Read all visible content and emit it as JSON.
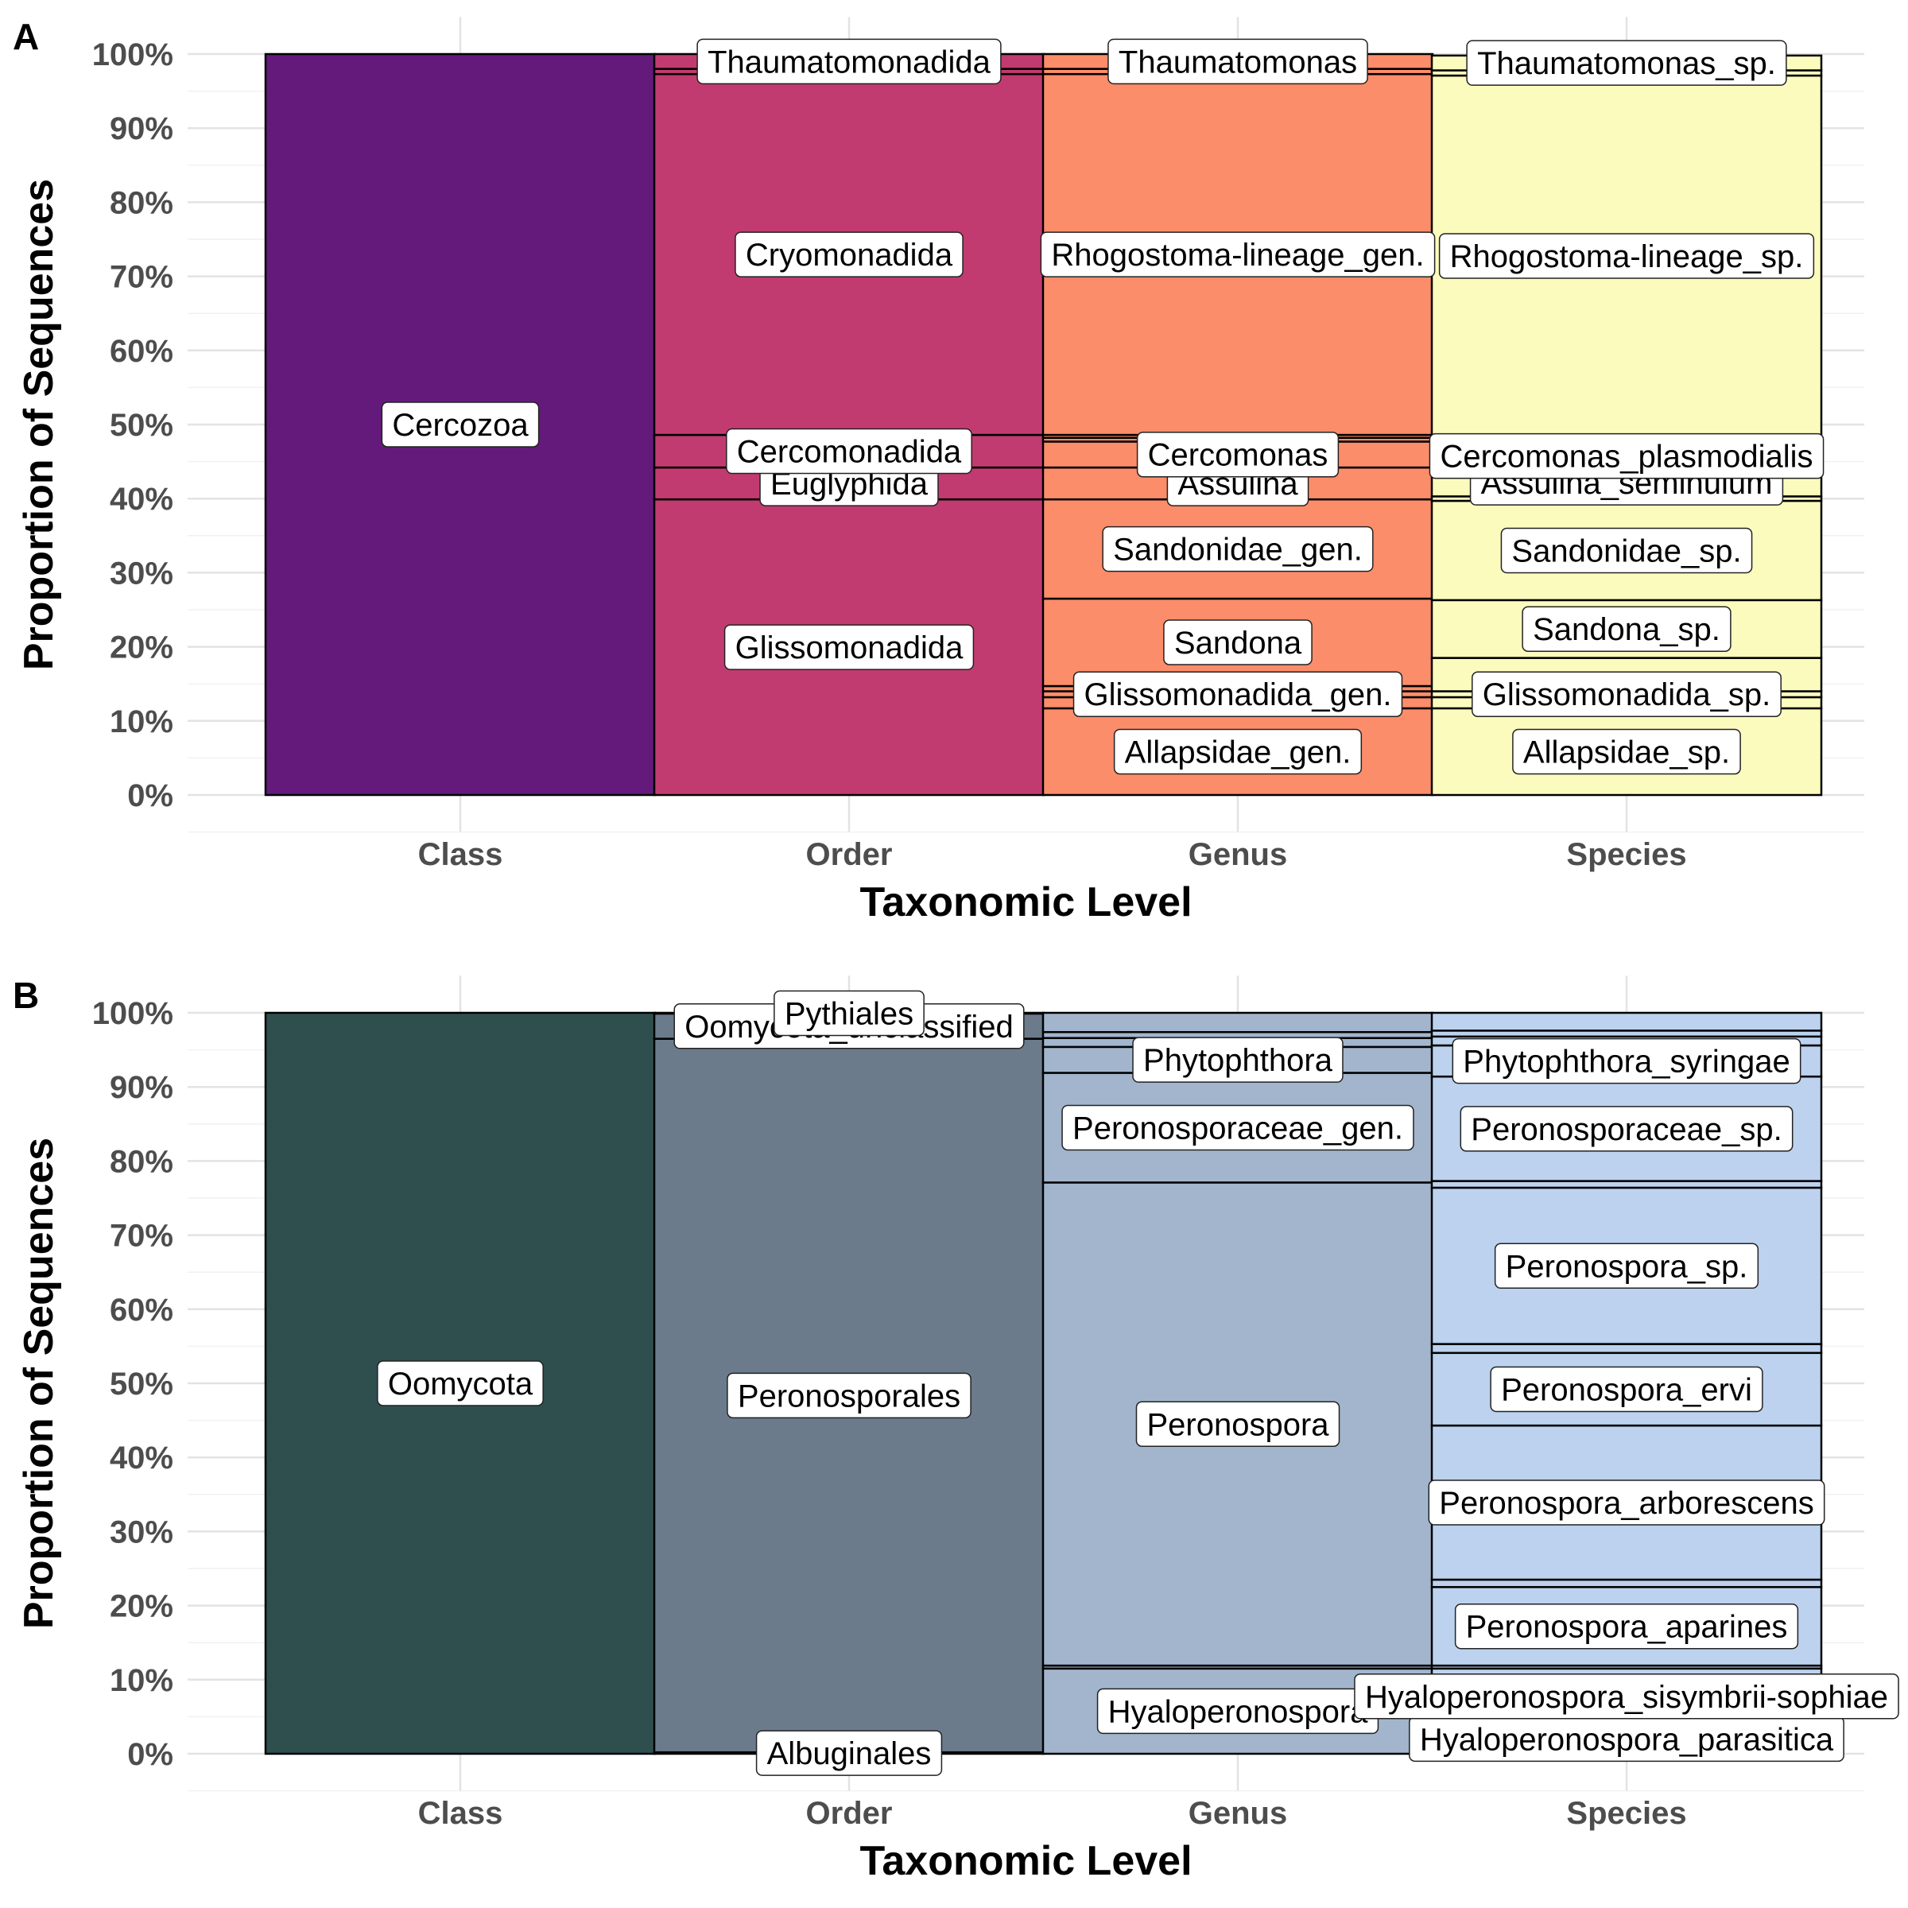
{
  "chart_data": [
    {
      "panel": "A",
      "type": "bar",
      "stacked": true,
      "xlabel": "Taxonomic Level",
      "ylabel": "Proportion of Sequences",
      "ylim": [
        0,
        100
      ],
      "yticks": [
        "0%",
        "10%",
        "20%",
        "30%",
        "40%",
        "50%",
        "60%",
        "70%",
        "80%",
        "90%",
        "100%"
      ],
      "categories": [
        "Class",
        "Order",
        "Genus",
        "Species"
      ],
      "grid": true,
      "colors": {
        "Class": "#641a7b",
        "Order": "#c23b70",
        "Genus": "#fc8d6a",
        "Species": "#fbfbbe"
      },
      "stacks": {
        "Class": [
          {
            "name": "Cercozoa",
            "value": 100,
            "labeled": true
          }
        ],
        "Order": [
          {
            "name": "Glissomonadida",
            "value": 39.9,
            "labeled": true
          },
          {
            "name": "Euglyphida",
            "value": 4.3,
            "labeled": true
          },
          {
            "name": "Cercomonadida",
            "value": 4.4,
            "labeled": true
          },
          {
            "name": "Cryomonadida",
            "value": 48.7,
            "labeled": true
          },
          {
            "name": "",
            "value": 0.7,
            "labeled": false
          },
          {
            "name": "Thaumatomonadida",
            "value": 2.0,
            "labeled": true
          }
        ],
        "Genus": [
          {
            "name": "Allapsidae_gen.",
            "value": 11.7,
            "labeled": true
          },
          {
            "name": "",
            "value": 1.5,
            "labeled": false
          },
          {
            "name": "Glissomonadida_gen.",
            "value": 0.8,
            "labeled": true
          },
          {
            "name": "",
            "value": 0.7,
            "labeled": false
          },
          {
            "name": "Sandona",
            "value": 11.8,
            "labeled": true
          },
          {
            "name": "Sandonidae_gen.",
            "value": 13.4,
            "labeled": true
          },
          {
            "name": "Assulina",
            "value": 4.3,
            "labeled": true
          },
          {
            "name": "Cercomonas",
            "value": 3.5,
            "labeled": true
          },
          {
            "name": "",
            "value": 0.5,
            "labeled": false
          },
          {
            "name": "",
            "value": 0.4,
            "labeled": false
          },
          {
            "name": "Rhogostoma-lineage_gen.",
            "value": 48.7,
            "labeled": true
          },
          {
            "name": "",
            "value": 0.7,
            "labeled": false
          },
          {
            "name": "Thaumatomonas",
            "value": 2.0,
            "labeled": true
          }
        ],
        "Species": [
          {
            "name": "Allapsidae_sp.",
            "value": 11.7,
            "labeled": true
          },
          {
            "name": "",
            "value": 1.5,
            "labeled": false
          },
          {
            "name": "Glissomonadida_sp.",
            "value": 0.8,
            "labeled": true
          },
          {
            "name": "",
            "value": 4.5,
            "labeled": false
          },
          {
            "name": "Sandona_sp.",
            "value": 7.8,
            "labeled": true
          },
          {
            "name": "Sandonidae_sp.",
            "value": 13.4,
            "labeled": true
          },
          {
            "name": "",
            "value": 0.6,
            "labeled": false
          },
          {
            "name": "Assulina_seminulum",
            "value": 3.7,
            "labeled": true
          },
          {
            "name": "Cercomonas_plasmodialis",
            "value": 3.5,
            "labeled": true
          },
          {
            "name": "",
            "value": 0.5,
            "labeled": false
          },
          {
            "name": "",
            "value": 0.4,
            "labeled": false
          },
          {
            "name": "Rhogostoma-lineage_sp.",
            "value": 48.7,
            "labeled": true
          },
          {
            "name": "",
            "value": 0.7,
            "labeled": false
          },
          {
            "name": "Thaumatomonas_sp.",
            "value": 2.0,
            "labeled": true
          }
        ]
      }
    },
    {
      "panel": "B",
      "type": "bar",
      "stacked": true,
      "xlabel": "Taxonomic Level",
      "ylabel": "Proportion of Sequences",
      "ylim": [
        0,
        100
      ],
      "yticks": [
        "0%",
        "10%",
        "20%",
        "30%",
        "40%",
        "50%",
        "60%",
        "70%",
        "80%",
        "90%",
        "100%"
      ],
      "categories": [
        "Class",
        "Order",
        "Genus",
        "Species"
      ],
      "grid": true,
      "colors": {
        "Class": "#2f4f4f",
        "Order": "#6c7b8b",
        "Genus": "#a2b5cd",
        "Species": "#bcd2ee"
      },
      "stacks": {
        "Class": [
          {
            "name": "Oomycota",
            "value": 100,
            "labeled": true
          }
        ],
        "Order": [
          {
            "name": "Albuginales",
            "value": 0.2,
            "labeled": true
          },
          {
            "name": "Peronosporales",
            "value": 96.3,
            "labeled": true
          },
          {
            "name": "Oomycota_unclassified",
            "value": 3.4,
            "labeled": true
          },
          {
            "name": "Pythiales",
            "value": 0.1,
            "labeled": true
          }
        ],
        "Genus": [
          {
            "name": "Hyaloperonospora",
            "value": 11.5,
            "labeled": true
          },
          {
            "name": "",
            "value": 0.4,
            "labeled": false
          },
          {
            "name": "Peronospora",
            "value": 65.2,
            "labeled": true
          },
          {
            "name": "Peronosporaceae_gen.",
            "value": 14.8,
            "labeled": true
          },
          {
            "name": "Phytophthora",
            "value": 3.5,
            "labeled": true
          },
          {
            "name": "",
            "value": 1.2,
            "labeled": false
          },
          {
            "name": "",
            "value": 0.8,
            "labeled": false
          },
          {
            "name": "",
            "value": 2.6,
            "labeled": false
          }
        ],
        "Species": [
          {
            "name": "Hyaloperonospora_parasitica",
            "value": 4.0,
            "labeled": true
          },
          {
            "name": "Hyaloperonospora_sisymbrii-sophiae",
            "value": 7.5,
            "labeled": true
          },
          {
            "name": "",
            "value": 0.4,
            "labeled": false
          },
          {
            "name": "Peronospora_aparines",
            "value": 10.6,
            "labeled": true
          },
          {
            "name": "",
            "value": 1.0,
            "labeled": false
          },
          {
            "name": "Peronospora_arborescens",
            "value": 20.8,
            "labeled": true
          },
          {
            "name": "Peronospora_ervi",
            "value": 9.8,
            "labeled": true
          },
          {
            "name": "",
            "value": 1.2,
            "labeled": false
          },
          {
            "name": "Peronospora_sp.",
            "value": 21.1,
            "labeled": true
          },
          {
            "name": "",
            "value": 0.9,
            "labeled": false
          },
          {
            "name": "Peronosporaceae_sp.",
            "value": 14.1,
            "labeled": true
          },
          {
            "name": "Phytophthora_syringae",
            "value": 4.2,
            "labeled": true
          },
          {
            "name": "",
            "value": 1.2,
            "labeled": false
          },
          {
            "name": "",
            "value": 0.8,
            "labeled": false
          },
          {
            "name": "",
            "value": 2.4,
            "labeled": false
          }
        ]
      }
    }
  ]
}
